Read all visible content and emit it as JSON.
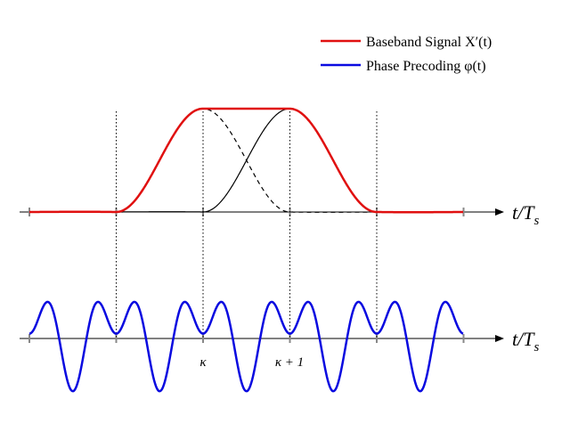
{
  "legend": {
    "items": [
      {
        "label": "Baseband Signal X′(t)",
        "color": "#e01010"
      },
      {
        "label": "Phase Precoding φ(t)",
        "color": "#0a0ae0"
      }
    ]
  },
  "axes": {
    "top": {
      "label": "t/T",
      "sub": "s"
    },
    "bottom": {
      "label": "t/T",
      "sub": "s"
    }
  },
  "ticks": {
    "kappa": "κ",
    "kappa_plus_1": "κ + 1"
  }
}
